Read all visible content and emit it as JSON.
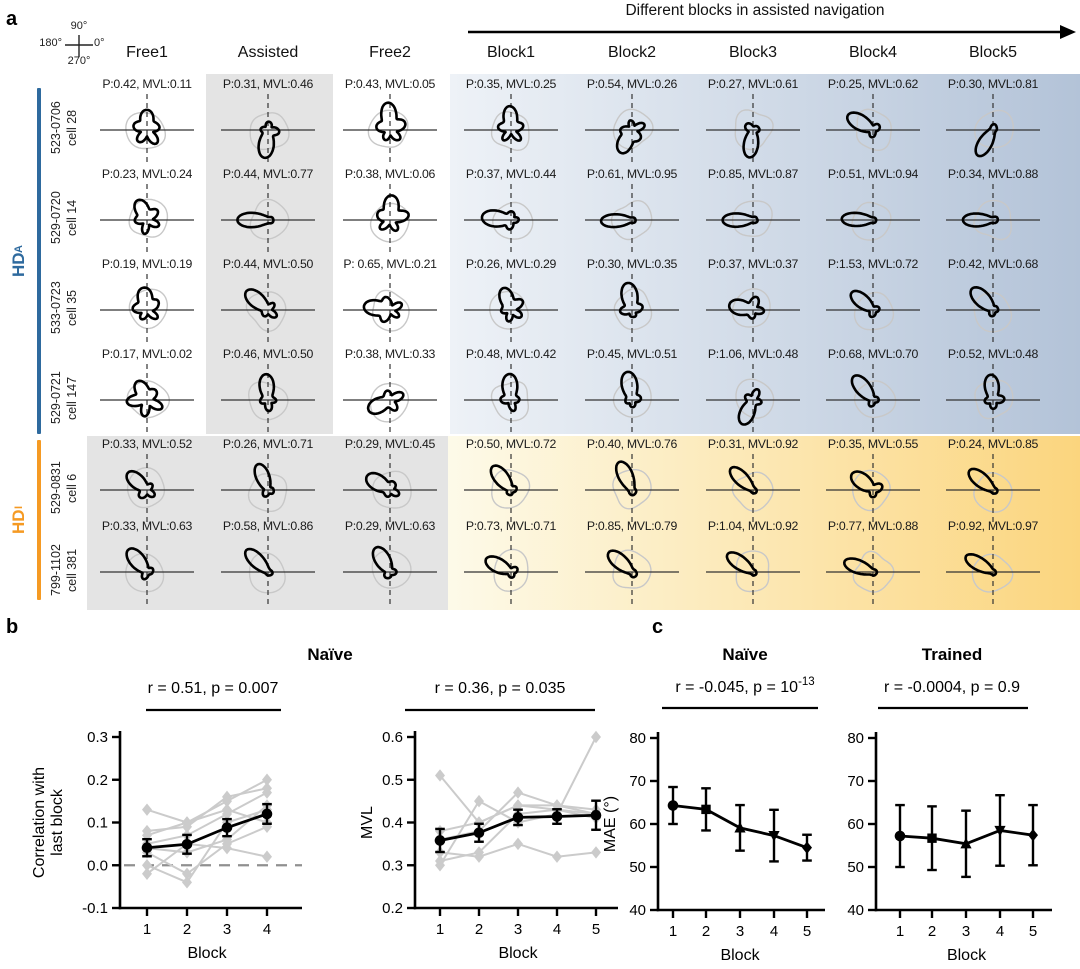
{
  "colors": {
    "hd_a": "#2e6a9e",
    "hd_i": "#f59a23",
    "grad_blue_from": "#eef2f7",
    "grad_blue_to": "#b3c3d8",
    "grad_yellow_from": "#fdfae9",
    "grad_yellow_to": "#fbd57e",
    "box_gray": "#e4e4e4",
    "curve_black": "#000000",
    "curve_gray": "#c8c8c8",
    "dashed_zero": "#909090"
  },
  "panel_a": {
    "label": "a",
    "arrow_title": "Different blocks in assisted navigation",
    "compass": {
      "top": "90°",
      "left": "180°",
      "right": "0°",
      "bottom": "270°"
    },
    "columns": [
      "Free1",
      "Assisted",
      "Free2",
      "Block1",
      "Block2",
      "Block3",
      "Block4",
      "Block5"
    ],
    "groups": [
      {
        "name": "HD",
        "sub": "A",
        "rows": [
          0,
          3
        ]
      },
      {
        "name": "HD",
        "sub": "I",
        "rows": [
          4,
          5
        ]
      }
    ],
    "rows": [
      {
        "id": "523-0706",
        "cell": "cell 28",
        "group": "HDA",
        "cells": [
          {
            "label": "P:0.42, MVL:0.11",
            "p": 0.42,
            "mvl": 0.11,
            "dir": 90
          },
          {
            "label": "P:0.31, MVL:0.46",
            "p": 0.31,
            "mvl": 0.46,
            "dir": 262
          },
          {
            "label": "P:0.43, MVL:0.05",
            "p": 0.43,
            "mvl": 0.05,
            "dir": 95
          },
          {
            "label": "P:0.35, MVL:0.25",
            "p": 0.35,
            "mvl": 0.25,
            "dir": 92
          },
          {
            "label": "P:0.54, MVL:0.26",
            "p": 0.54,
            "mvl": 0.26,
            "dir": 240
          },
          {
            "label": "P:0.27, MVL:0.61",
            "p": 0.27,
            "mvl": 0.61,
            "dir": 262
          },
          {
            "label": "P:0.25, MVL:0.62",
            "p": 0.25,
            "mvl": 0.62,
            "dir": 150
          },
          {
            "label": "P:0.30, MVL:0.81",
            "p": 0.3,
            "mvl": 0.81,
            "dir": 240
          }
        ]
      },
      {
        "id": "529-0720",
        "cell": "cell 14",
        "group": "HDA",
        "cells": [
          {
            "label": "P:0.23, MVL:0.24",
            "p": 0.23,
            "mvl": 0.24,
            "dir": 115
          },
          {
            "label": "P:0.44, MVL:0.77",
            "p": 0.44,
            "mvl": 0.77,
            "dir": 180
          },
          {
            "label": "P:0.38, MVL:0.06",
            "p": 0.38,
            "mvl": 0.06,
            "dir": 85
          },
          {
            "label": "P:0.37, MVL:0.44",
            "p": 0.37,
            "mvl": 0.44,
            "dir": 175
          },
          {
            "label": "P:0.61, MVL:0.95",
            "p": 0.61,
            "mvl": 0.95,
            "dir": 182
          },
          {
            "label": "P:0.85, MVL:0.87",
            "p": 0.85,
            "mvl": 0.87,
            "dir": 180
          },
          {
            "label": "P:0.51, MVL:0.94",
            "p": 0.51,
            "mvl": 0.94,
            "dir": 178
          },
          {
            "label": "P:0.34, MVL:0.88",
            "p": 0.34,
            "mvl": 0.88,
            "dir": 180
          }
        ]
      },
      {
        "id": "533-0723",
        "cell": "cell 35",
        "group": "HDA",
        "cells": [
          {
            "label": "P:0.19, MVL:0.19",
            "p": 0.19,
            "mvl": 0.19,
            "dir": 100
          },
          {
            "label": "P:0.44, MVL:0.50",
            "p": 0.44,
            "mvl": 0.5,
            "dir": 138
          },
          {
            "label": "P: 0.65, MVL:0.21",
            "p": 0.65,
            "mvl": 0.21,
            "dir": 172
          },
          {
            "label": "P:0.26, MVL:0.29",
            "p": 0.26,
            "mvl": 0.29,
            "dir": 112
          },
          {
            "label": "P:0.30, MVL:0.35",
            "p": 0.3,
            "mvl": 0.35,
            "dir": 100
          },
          {
            "label": "P:0.37, MVL:0.37",
            "p": 0.37,
            "mvl": 0.37,
            "dir": 170
          },
          {
            "label": "P:1.53, MVL:0.72",
            "p": 1.53,
            "mvl": 0.72,
            "dir": 140
          },
          {
            "label": "P:0.42, MVL:0.68",
            "p": 0.42,
            "mvl": 0.68,
            "dir": 135
          }
        ]
      },
      {
        "id": "529-0721",
        "cell": "cell 147",
        "group": "HDA",
        "cells": [
          {
            "label": "P:0.17, MVL:0.02",
            "p": 0.17,
            "mvl": 0.02,
            "dir": 115
          },
          {
            "label": "P:0.46, MVL:0.50",
            "p": 0.46,
            "mvl": 0.5,
            "dir": 95
          },
          {
            "label": "P:0.38, MVL:0.33",
            "p": 0.38,
            "mvl": 0.33,
            "dir": 205
          },
          {
            "label": "P:0.48, MVL:0.42",
            "p": 0.48,
            "mvl": 0.42,
            "dir": 95
          },
          {
            "label": "P:0.45, MVL:0.51",
            "p": 0.45,
            "mvl": 0.51,
            "dir": 100
          },
          {
            "label": "P:1.06, MVL:0.48",
            "p": 1.06,
            "mvl": 0.48,
            "dir": 245
          },
          {
            "label": "P:0.68, MVL:0.70",
            "p": 0.68,
            "mvl": 0.7,
            "dir": 130
          },
          {
            "label": "P:0.52, MVL:0.48",
            "p": 0.52,
            "mvl": 0.48,
            "dir": 95
          }
        ]
      },
      {
        "id": "529-0831",
        "cell": "cell 6",
        "group": "HDI",
        "cells": [
          {
            "label": "P:0.33, MVL:0.52",
            "p": 0.33,
            "mvl": 0.52,
            "dir": 138
          },
          {
            "label": "P:0.26, MVL:0.71",
            "p": 0.26,
            "mvl": 0.71,
            "dir": 112
          },
          {
            "label": "P:0.29, MVL:0.45",
            "p": 0.29,
            "mvl": 0.45,
            "dir": 150
          },
          {
            "label": "P:0.50, MVL:0.72",
            "p": 0.5,
            "mvl": 0.72,
            "dir": 128
          },
          {
            "label": "P:0.40, MVL:0.76",
            "p": 0.4,
            "mvl": 0.76,
            "dir": 115
          },
          {
            "label": "P:0.31, MVL:0.92",
            "p": 0.31,
            "mvl": 0.92,
            "dir": 135
          },
          {
            "label": "P:0.35, MVL:0.55",
            "p": 0.35,
            "mvl": 0.55,
            "dir": 142
          },
          {
            "label": "P:0.24, MVL:0.85",
            "p": 0.24,
            "mvl": 0.85,
            "dir": 140
          }
        ]
      },
      {
        "id": "799-1102",
        "cell": "cell 381",
        "group": "HDI",
        "cells": [
          {
            "label": "P:0.33, MVL:0.63",
            "p": 0.33,
            "mvl": 0.63,
            "dir": 130
          },
          {
            "label": "P:0.58, MVL:0.86",
            "p": 0.58,
            "mvl": 0.86,
            "dir": 135
          },
          {
            "label": "P:0.29, MVL:0.63",
            "p": 0.29,
            "mvl": 0.63,
            "dir": 120
          },
          {
            "label": "P:0.73, MVL:0.71",
            "p": 0.73,
            "mvl": 0.71,
            "dir": 152
          },
          {
            "label": "P:0.85, MVL:0.79",
            "p": 0.85,
            "mvl": 0.79,
            "dir": 140
          },
          {
            "label": "P:1.04, MVL:0.92",
            "p": 1.04,
            "mvl": 0.92,
            "dir": 145
          },
          {
            "label": "P:0.77, MVL:0.88",
            "p": 0.77,
            "mvl": 0.88,
            "dir": 160
          },
          {
            "label": "P:0.92, MVL:0.97",
            "p": 0.92,
            "mvl": 0.97,
            "dir": 150
          }
        ]
      }
    ]
  },
  "panel_b": {
    "label": "b",
    "title": "Naïve"
  },
  "panel_c": {
    "label": "c"
  },
  "chart_data": [
    {
      "id": "b_corr",
      "type": "line",
      "stat": "r = 0.51, p = 0.007",
      "xlabel": "Block",
      "ylabel": "Correlation with last block",
      "ylabel_lines": [
        "Correlation with",
        "last block"
      ],
      "x": [
        1,
        2,
        3,
        4
      ],
      "ylim": [
        -0.1,
        0.3
      ],
      "yticks": [
        -0.1,
        0,
        0.1,
        0.2,
        0.3
      ],
      "ytick_labels": [
        "-0.1",
        "0.0",
        "0.1",
        "0.2",
        "0.3"
      ],
      "zero_line_dashed": true,
      "mean": [
        0.041,
        0.049,
        0.088,
        0.12
      ],
      "err": [
        0.02,
        0.022,
        0.02,
        0.023
      ],
      "individual": [
        [
          0.13,
          0.1,
          0.15,
          0.2
        ],
        [
          0.08,
          0.09,
          0.16,
          0.18
        ],
        [
          0.07,
          0.1,
          0.13,
          0.1
        ],
        [
          0.04,
          0.03,
          0.06,
          0.14
        ],
        [
          0.03,
          -0.02,
          0.05,
          0.09
        ],
        [
          0.0,
          -0.04,
          0.1,
          0.13
        ],
        [
          -0.02,
          0.05,
          0.04,
          0.02
        ],
        [
          0.05,
          0.07,
          0.12,
          0.17
        ]
      ]
    },
    {
      "id": "b_mvl",
      "type": "line",
      "stat": "r = 0.36, p = 0.035",
      "xlabel": "Block",
      "ylabel": "MVL",
      "ylabel_lines": [
        "MVL"
      ],
      "x": [
        1,
        2,
        3,
        4,
        5
      ],
      "ylim": [
        0.2,
        0.6
      ],
      "yticks": [
        0.2,
        0.3,
        0.4,
        0.5,
        0.6
      ],
      "ytick_labels": [
        "0.2",
        "0.3",
        "0.4",
        "0.5",
        "0.6"
      ],
      "mean": [
        0.358,
        0.376,
        0.412,
        0.414,
        0.417
      ],
      "err": [
        0.027,
        0.021,
        0.018,
        0.017,
        0.034
      ],
      "individual": [
        [
          0.51,
          0.4,
          0.44,
          0.44,
          0.43
        ],
        [
          0.3,
          0.45,
          0.4,
          0.42,
          0.6
        ],
        [
          0.33,
          0.32,
          0.35,
          0.32,
          0.33
        ],
        [
          0.36,
          0.38,
          0.47,
          0.44,
          0.42
        ],
        [
          0.31,
          0.33,
          0.42,
          0.43,
          0.41
        ],
        [
          0.38,
          0.4,
          0.44,
          0.43,
          0.42
        ]
      ]
    },
    {
      "id": "c_naive",
      "type": "line",
      "title": "Naïve",
      "stat_base": "r = -0.045, p = 10",
      "stat_sup": "-13",
      "xlabel": "Block",
      "ylabel": "MAE (°)",
      "ylabel_lines": [
        "MAE (°)"
      ],
      "x": [
        1,
        2,
        3,
        4,
        5
      ],
      "ylim": [
        40,
        80
      ],
      "yticks": [
        40,
        50,
        60,
        70,
        80
      ],
      "ytick_labels": [
        "40",
        "50",
        "60",
        "70",
        "80"
      ],
      "mean": [
        64.3,
        63.4,
        59.1,
        57.3,
        54.5
      ],
      "err": [
        4.3,
        4.9,
        5.3,
        6.0,
        3.0
      ],
      "markers": [
        "circle",
        "square",
        "triangle_up",
        "triangle_down",
        "diamond"
      ]
    },
    {
      "id": "c_trained",
      "type": "line",
      "title": "Trained",
      "stat": "r = -0.0004, p = 0.9",
      "xlabel": "Block",
      "ylabel": "",
      "ylabel_lines": [],
      "x": [
        1,
        2,
        3,
        4,
        5
      ],
      "ylim": [
        40,
        80
      ],
      "yticks": [
        40,
        50,
        60,
        70,
        80
      ],
      "ytick_labels": [
        "40",
        "50",
        "60",
        "70",
        "80"
      ],
      "mean": [
        57.2,
        56.7,
        55.4,
        58.5,
        57.4
      ],
      "err": [
        7.2,
        7.4,
        7.7,
        8.2,
        7.0
      ],
      "markers": [
        "circle",
        "square",
        "triangle_up",
        "triangle_down",
        "diamond"
      ]
    }
  ]
}
